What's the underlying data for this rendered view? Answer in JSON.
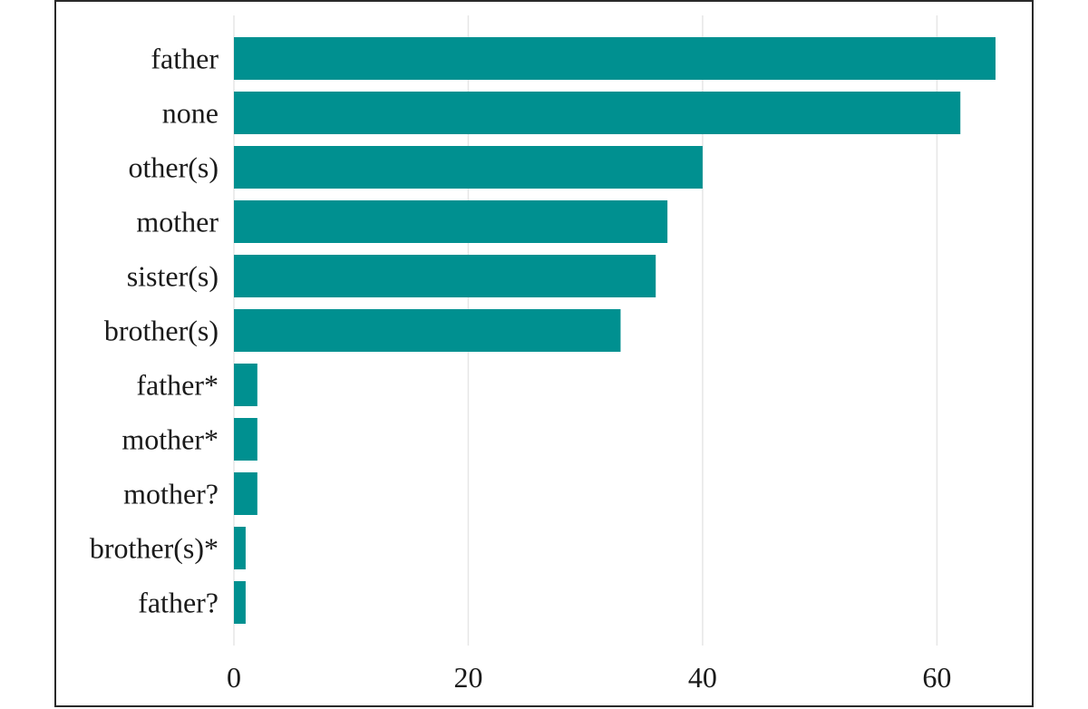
{
  "chart_data": {
    "type": "bar",
    "orientation": "horizontal",
    "title": "",
    "xlabel": "",
    "ylabel": "",
    "categories": [
      "father",
      "none",
      "other(s)",
      "mother",
      "sister(s)",
      "brother(s)",
      "father*",
      "mother*",
      "mother?",
      "brother(s)*",
      "father?"
    ],
    "values": [
      65,
      62,
      40,
      37,
      36,
      33,
      2,
      2,
      2,
      1,
      1
    ],
    "xlim": [
      0,
      65
    ],
    "x_ticks": [
      0,
      20,
      40,
      60
    ],
    "grid": "vertical",
    "legend": "none",
    "bar_color": "#009090"
  }
}
